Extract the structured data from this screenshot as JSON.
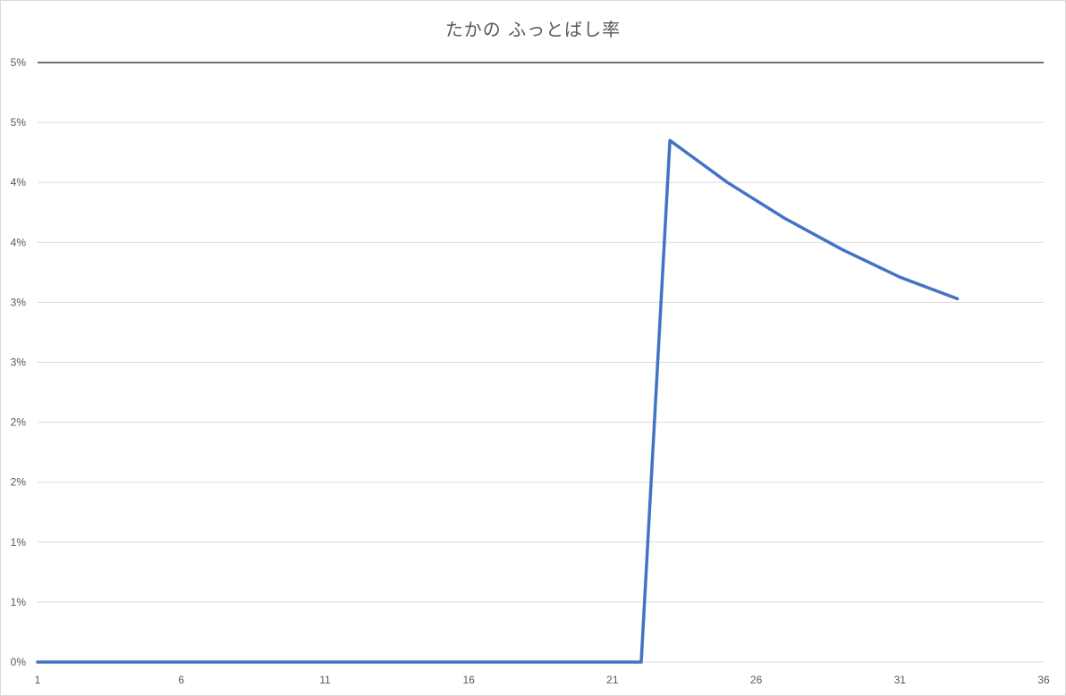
{
  "chart_data": {
    "type": "line",
    "title": "たかの ふっとばし率",
    "xlabel": "",
    "ylabel": "",
    "x_ticks": [
      "1",
      "6",
      "11",
      "16",
      "21",
      "26",
      "31",
      "36"
    ],
    "y_ticks": [
      "0%",
      "1%",
      "1%",
      "2%",
      "2%",
      "3%",
      "3%",
      "4%",
      "4%",
      "5%",
      "5%"
    ],
    "xlim": [
      1,
      36
    ],
    "ylim": [
      0,
      0.05
    ],
    "grid": true,
    "legend": "none",
    "series": [
      {
        "color": "#4472c4",
        "x": [
          1,
          2,
          3,
          4,
          5,
          6,
          7,
          8,
          9,
          10,
          11,
          12,
          13,
          14,
          15,
          16,
          17,
          18,
          19,
          20,
          21,
          22,
          23,
          25,
          27,
          29,
          31,
          33
        ],
        "y": [
          0,
          0,
          0,
          0,
          0,
          0,
          0,
          0,
          0,
          0,
          0,
          0,
          0,
          0,
          0,
          0,
          0,
          0,
          0,
          0,
          0,
          0,
          0.0435,
          0.04,
          0.037,
          0.0344,
          0.0321,
          0.0303
        ]
      }
    ]
  }
}
